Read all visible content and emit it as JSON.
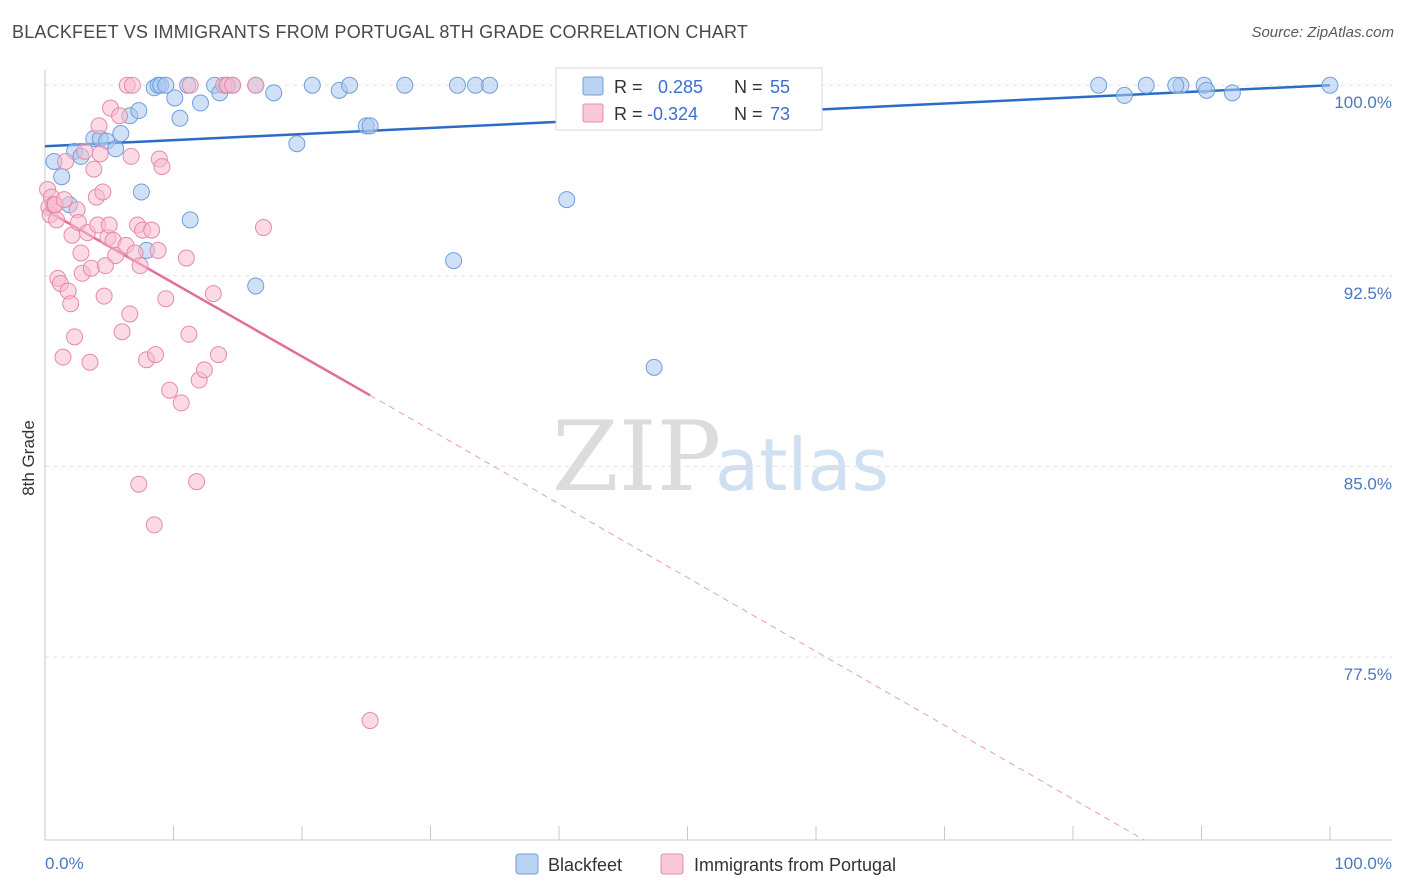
{
  "header": {
    "title": "BLACKFEET VS IMMIGRANTS FROM PORTUGAL 8TH GRADE CORRELATION CHART",
    "source": "Source: ZipAtlas.com"
  },
  "watermark": {
    "zip": "ZIP",
    "atlas": "atlas"
  },
  "stats": [
    {
      "r_label": "R =",
      "r_value": "0.285",
      "n_label": "N =",
      "n_value": "55",
      "color": "#a9c8f0",
      "border": "#6f9fd8"
    },
    {
      "r_label": "R =",
      "r_value": "-0.324",
      "n_label": "N =",
      "n_value": "73",
      "color": "#f7bcd0",
      "border": "#e58aab"
    }
  ],
  "chart_data": {
    "type": "scatter",
    "title": "BLACKFEET VS IMMIGRANTS FROM PORTUGAL 8TH GRADE CORRELATION CHART",
    "xlabel": "",
    "ylabel": "8th Grade",
    "xlim": [
      0,
      100
    ],
    "ylim": [
      70.3,
      100.6
    ],
    "x_tick_labels": [
      "0.0%",
      "100.0%"
    ],
    "y_ticks": [
      {
        "value": 100.0,
        "label": "100.0%"
      },
      {
        "value": 92.5,
        "label": "92.5%"
      },
      {
        "value": 85.0,
        "label": "85.0%"
      },
      {
        "value": 77.5,
        "label": "77.5%"
      }
    ],
    "grid": true,
    "legend_position": "bottom-center",
    "series": [
      {
        "name": "Blackfeet",
        "color": "#a9c8f0",
        "stroke": "#6f9fd8",
        "trend_color": "#2a6cc8",
        "trend": {
          "x": [
            0,
            100
          ],
          "y": [
            97.6,
            100.0
          ],
          "dashed_from": null
        },
        "points": [
          [
            0.7,
            97.0
          ],
          [
            1.3,
            96.4
          ],
          [
            1.9,
            95.3
          ],
          [
            2.3,
            97.4
          ],
          [
            2.8,
            97.2
          ],
          [
            3.8,
            97.9
          ],
          [
            4.3,
            97.9
          ],
          [
            4.8,
            97.8
          ],
          [
            5.5,
            97.5
          ],
          [
            5.9,
            98.1
          ],
          [
            6.6,
            98.8
          ],
          [
            7.3,
            99.0
          ],
          [
            7.5,
            95.8
          ],
          [
            7.9,
            93.5
          ],
          [
            8.5,
            99.9
          ],
          [
            8.8,
            100.0
          ],
          [
            9.0,
            100.0
          ],
          [
            9.4,
            100.0
          ],
          [
            10.1,
            99.5
          ],
          [
            10.5,
            98.7
          ],
          [
            11.1,
            100.0
          ],
          [
            11.3,
            94.7
          ],
          [
            12.1,
            99.3
          ],
          [
            13.2,
            100.0
          ],
          [
            13.6,
            99.7
          ],
          [
            14.1,
            100.0
          ],
          [
            14.6,
            100.0
          ],
          [
            16.4,
            100.0
          ],
          [
            16.4,
            92.1
          ],
          [
            17.8,
            99.7
          ],
          [
            19.6,
            97.7
          ],
          [
            20.8,
            100.0
          ],
          [
            22.9,
            99.8
          ],
          [
            23.7,
            100.0
          ],
          [
            25.0,
            98.4
          ],
          [
            25.3,
            98.4
          ],
          [
            28.0,
            100.0
          ],
          [
            32.1,
            100.0
          ],
          [
            31.8,
            93.1
          ],
          [
            33.5,
            100.0
          ],
          [
            34.6,
            100.0
          ],
          [
            40.6,
            95.5
          ],
          [
            44.5,
            100.0
          ],
          [
            47.4,
            88.9
          ],
          [
            48.9,
            100.0
          ],
          [
            49.3,
            100.0
          ],
          [
            82.0,
            100.0
          ],
          [
            84.0,
            99.6
          ],
          [
            85.7,
            100.0
          ],
          [
            88.4,
            100.0
          ],
          [
            90.2,
            100.0
          ],
          [
            90.4,
            99.8
          ],
          [
            92.4,
            99.7
          ],
          [
            100.0,
            100.0
          ],
          [
            88.0,
            100.0
          ]
        ]
      },
      {
        "name": "Immigrants from Portugal",
        "color": "#f7bcd0",
        "stroke": "#e58aab",
        "trend_color": "#e0709a",
        "trend": {
          "x": [
            0,
            25.3,
            100
          ],
          "y": [
            95.1,
            87.8,
            66.1
          ],
          "dashed_from": 25.3
        },
        "points": [
          [
            0.2,
            95.9
          ],
          [
            0.3,
            95.2
          ],
          [
            0.4,
            94.9
          ],
          [
            0.5,
            95.6
          ],
          [
            0.7,
            95.3
          ],
          [
            0.9,
            94.7
          ],
          [
            1.0,
            92.4
          ],
          [
            1.2,
            92.2
          ],
          [
            1.4,
            89.3
          ],
          [
            1.6,
            97.0
          ],
          [
            1.8,
            91.9
          ],
          [
            2.0,
            91.4
          ],
          [
            2.1,
            94.1
          ],
          [
            2.3,
            90.1
          ],
          [
            2.5,
            95.1
          ],
          [
            2.6,
            94.6
          ],
          [
            2.8,
            93.4
          ],
          [
            2.9,
            92.6
          ],
          [
            3.1,
            97.4
          ],
          [
            3.3,
            94.2
          ],
          [
            3.5,
            89.1
          ],
          [
            3.6,
            92.8
          ],
          [
            3.8,
            96.7
          ],
          [
            4.0,
            95.6
          ],
          [
            4.1,
            94.5
          ],
          [
            4.2,
            98.4
          ],
          [
            4.3,
            97.3
          ],
          [
            4.5,
            95.8
          ],
          [
            4.6,
            91.7
          ],
          [
            4.7,
            92.9
          ],
          [
            4.9,
            94.0
          ],
          [
            5.0,
            94.5
          ],
          [
            5.1,
            99.1
          ],
          [
            5.3,
            93.9
          ],
          [
            5.5,
            93.3
          ],
          [
            5.8,
            98.8
          ],
          [
            6.0,
            90.3
          ],
          [
            6.3,
            93.7
          ],
          [
            6.4,
            100.0
          ],
          [
            6.6,
            91.0
          ],
          [
            6.7,
            97.2
          ],
          [
            6.8,
            100.0
          ],
          [
            7.0,
            93.4
          ],
          [
            7.2,
            94.5
          ],
          [
            7.3,
            84.3
          ],
          [
            7.4,
            92.9
          ],
          [
            7.6,
            94.3
          ],
          [
            7.9,
            89.2
          ],
          [
            8.3,
            94.3
          ],
          [
            8.5,
            82.7
          ],
          [
            8.6,
            89.4
          ],
          [
            8.8,
            93.5
          ],
          [
            8.9,
            97.1
          ],
          [
            9.1,
            96.8
          ],
          [
            9.4,
            91.6
          ],
          [
            9.7,
            88.0
          ],
          [
            10.6,
            87.5
          ],
          [
            11.0,
            93.2
          ],
          [
            11.2,
            90.2
          ],
          [
            11.3,
            100.0
          ],
          [
            11.8,
            84.4
          ],
          [
            12.0,
            88.4
          ],
          [
            12.4,
            88.8
          ],
          [
            13.1,
            91.8
          ],
          [
            13.5,
            89.4
          ],
          [
            13.9,
            100.0
          ],
          [
            14.2,
            100.0
          ],
          [
            14.6,
            100.0
          ],
          [
            16.4,
            100.0
          ],
          [
            17.0,
            94.4
          ],
          [
            0.8,
            95.3
          ],
          [
            1.5,
            95.5
          ],
          [
            25.3,
            75.0
          ]
        ]
      }
    ]
  }
}
